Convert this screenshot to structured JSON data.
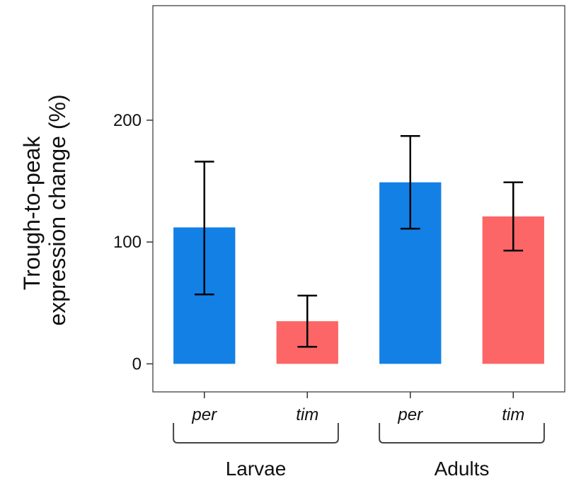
{
  "chart_data": {
    "type": "bar",
    "ylabel_lines": [
      "Trough-to-peak",
      "expression change (%)"
    ],
    "categories": [
      "per",
      "tim",
      "per",
      "tim"
    ],
    "groups": [
      {
        "label": "Larvae",
        "categories": [
          "per",
          "tim"
        ]
      },
      {
        "label": "Adults",
        "categories": [
          "per",
          "tim"
        ]
      }
    ],
    "values": [
      112,
      35,
      149,
      121
    ],
    "error_low": [
      57,
      14,
      111,
      93
    ],
    "error_high": [
      166,
      56,
      187,
      149
    ],
    "bar_colors": [
      "#1380e6",
      "#fc6666",
      "#1380e6",
      "#fc6666"
    ],
    "yticks": [
      0,
      100,
      200
    ],
    "ytick_labels": [
      "0",
      "100",
      "200"
    ],
    "ylim": [
      -23,
      294
    ],
    "grid": false
  }
}
